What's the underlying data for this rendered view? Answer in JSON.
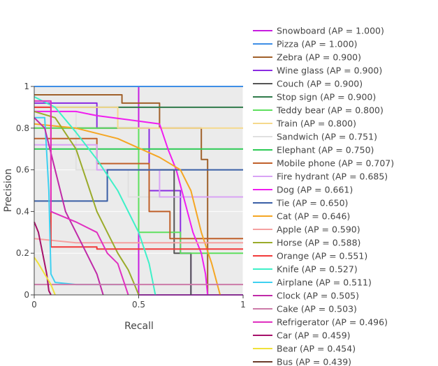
{
  "chart_data": {
    "type": "line",
    "title": "",
    "xlabel": "Recall",
    "ylabel": "Precision",
    "xlim": [
      0,
      1
    ],
    "ylim": [
      0,
      1
    ],
    "x_ticks": [
      {
        "value": 0,
        "label": "0"
      },
      {
        "value": 0.5,
        "label": "0.5"
      },
      {
        "value": 1,
        "label": "1"
      }
    ],
    "y_ticks": [
      {
        "value": 0,
        "label": "0"
      },
      {
        "value": 0.2,
        "label": "0.2"
      },
      {
        "value": 0.4,
        "label": "0.4"
      },
      {
        "value": 0.6,
        "label": "0.6"
      },
      {
        "value": 0.8,
        "label": "0.8"
      },
      {
        "value": 1,
        "label": "1"
      }
    ],
    "legend_position": "right",
    "series": [
      {
        "name": "Snowboard (AP = 1.000)",
        "color": "#c71ce0",
        "points": [
          [
            0,
            1
          ],
          [
            0.5,
            1
          ],
          [
            0.5,
            0
          ],
          [
            1,
            0
          ]
        ]
      },
      {
        "name": "Pizza (AP = 1.000)",
        "color": "#3e8ee6",
        "points": [
          [
            0,
            1
          ],
          [
            1,
            1
          ]
        ]
      },
      {
        "name": "Zebra (AP = 0.900)",
        "color": "#a0602a",
        "points": [
          [
            0,
            0.96
          ],
          [
            0.42,
            0.96
          ],
          [
            0.42,
            0.92
          ],
          [
            0.6,
            0.92
          ],
          [
            0.6,
            0.8
          ],
          [
            0.8,
            0.8
          ],
          [
            0.8,
            0.65
          ],
          [
            0.83,
            0.65
          ],
          [
            0.83,
            0
          ]
        ]
      },
      {
        "name": "Wine glass (AP = 0.900)",
        "color": "#8a2be2",
        "points": [
          [
            0,
            0.92
          ],
          [
            0.3,
            0.92
          ],
          [
            0.3,
            0.8
          ],
          [
            0.55,
            0.8
          ],
          [
            0.55,
            0.5
          ],
          [
            0.7,
            0.5
          ],
          [
            0.7,
            0.2
          ],
          [
            0.75,
            0.2
          ],
          [
            0.75,
            0
          ]
        ]
      },
      {
        "name": "Couch (AP = 0.900)",
        "color": "#555555",
        "points": [
          [
            0,
            0.8
          ],
          [
            0.5,
            0.8
          ],
          [
            0.5,
            0.6
          ],
          [
            0.67,
            0.6
          ],
          [
            0.67,
            0.2
          ],
          [
            0.75,
            0.2
          ],
          [
            0.75,
            0
          ]
        ]
      },
      {
        "name": "Stop sign (AP = 0.900)",
        "color": "#2f7a4a",
        "points": [
          [
            0,
            0.9
          ],
          [
            1,
            0.9
          ]
        ]
      },
      {
        "name": "Teddy bear (AP = 0.800)",
        "color": "#5ee05e",
        "points": [
          [
            0,
            0.8
          ],
          [
            0.5,
            0.8
          ],
          [
            0.5,
            0.3
          ],
          [
            0.7,
            0.3
          ],
          [
            0.7,
            0.2
          ],
          [
            1,
            0.2
          ]
        ]
      },
      {
        "name": "Train (AP = 0.800)",
        "color": "#f5d98c",
        "points": [
          [
            0,
            0.9
          ],
          [
            0.4,
            0.9
          ],
          [
            0.4,
            0.8
          ],
          [
            1,
            0.8
          ]
        ]
      },
      {
        "name": "Sandwich (AP = 0.751)",
        "color": "#e0e0e0",
        "points": [
          [
            0,
            0.88
          ],
          [
            0.2,
            0.88
          ],
          [
            0.2,
            0.6
          ],
          [
            0.45,
            0.6
          ],
          [
            0.45,
            0.47
          ],
          [
            1,
            0.47
          ]
        ]
      },
      {
        "name": "Elephant (AP = 0.750)",
        "color": "#2ccb55",
        "points": [
          [
            0,
            0.7
          ],
          [
            1,
            0.7
          ]
        ]
      },
      {
        "name": "Mobile phone (AP = 0.707)",
        "color": "#c0602a",
        "points": [
          [
            0,
            0.75
          ],
          [
            0.3,
            0.75
          ],
          [
            0.3,
            0.63
          ],
          [
            0.55,
            0.63
          ],
          [
            0.55,
            0.4
          ],
          [
            0.65,
            0.4
          ],
          [
            0.65,
            0.27
          ],
          [
            1,
            0.27
          ]
        ]
      },
      {
        "name": "Fire hydrant (AP = 0.685)",
        "color": "#d9a3f5",
        "points": [
          [
            0,
            0.72
          ],
          [
            0.3,
            0.72
          ],
          [
            0.3,
            0.6
          ],
          [
            0.6,
            0.6
          ],
          [
            0.6,
            0.47
          ],
          [
            1,
            0.47
          ]
        ]
      },
      {
        "name": "Dog (AP = 0.661)",
        "color": "#f01df0",
        "points": [
          [
            0,
            0.88
          ],
          [
            0.2,
            0.88
          ],
          [
            0.3,
            0.86
          ],
          [
            0.45,
            0.84
          ],
          [
            0.6,
            0.82
          ],
          [
            0.62,
            0.76
          ],
          [
            0.64,
            0.7
          ],
          [
            0.68,
            0.6
          ],
          [
            0.72,
            0.45
          ],
          [
            0.76,
            0.3
          ],
          [
            0.8,
            0.2
          ],
          [
            0.82,
            0.1
          ],
          [
            0.83,
            0
          ]
        ]
      },
      {
        "name": "Tie (AP = 0.650)",
        "color": "#3a5fa6",
        "points": [
          [
            0,
            0.45
          ],
          [
            0.35,
            0.45
          ],
          [
            0.35,
            0.6
          ],
          [
            1,
            0.6
          ]
        ]
      },
      {
        "name": "Cat (AP = 0.646)",
        "color": "#f5a623",
        "points": [
          [
            0,
            0.82
          ],
          [
            0.2,
            0.8
          ],
          [
            0.4,
            0.75
          ],
          [
            0.6,
            0.66
          ],
          [
            0.7,
            0.6
          ],
          [
            0.75,
            0.5
          ],
          [
            0.8,
            0.3
          ],
          [
            0.85,
            0.15
          ],
          [
            0.89,
            0
          ]
        ]
      },
      {
        "name": "Apple (AP = 0.590)",
        "color": "#f5a0a0",
        "points": [
          [
            0,
            0.27
          ],
          [
            0.1,
            0.26
          ],
          [
            0.2,
            0.25
          ],
          [
            1,
            0.25
          ]
        ]
      },
      {
        "name": "Horse (AP = 0.588)",
        "color": "#9aab2a",
        "points": [
          [
            0,
            0.88
          ],
          [
            0.1,
            0.85
          ],
          [
            0.2,
            0.7
          ],
          [
            0.25,
            0.55
          ],
          [
            0.3,
            0.4
          ],
          [
            0.35,
            0.3
          ],
          [
            0.4,
            0.2
          ],
          [
            0.45,
            0.12
          ],
          [
            0.48,
            0.05
          ],
          [
            0.5,
            0
          ]
        ]
      },
      {
        "name": "Orange (AP = 0.551)",
        "color": "#f23a3a",
        "points": [
          [
            0,
            0.9
          ],
          [
            0.08,
            0.9
          ],
          [
            0.08,
            0.23
          ],
          [
            0.3,
            0.23
          ],
          [
            0.3,
            0.22
          ],
          [
            1,
            0.22
          ]
        ]
      },
      {
        "name": "Knife (AP = 0.527)",
        "color": "#3ef0c8",
        "points": [
          [
            0,
            0.95
          ],
          [
            0.1,
            0.9
          ],
          [
            0.2,
            0.78
          ],
          [
            0.3,
            0.65
          ],
          [
            0.4,
            0.5
          ],
          [
            0.5,
            0.3
          ],
          [
            0.55,
            0.15
          ],
          [
            0.58,
            0
          ]
        ]
      },
      {
        "name": "Airplane (AP = 0.511)",
        "color": "#3ed0f0",
        "points": [
          [
            0,
            0.85
          ],
          [
            0.05,
            0.85
          ],
          [
            0.07,
            0.5
          ],
          [
            0.08,
            0.1
          ],
          [
            0.1,
            0.06
          ],
          [
            0.2,
            0.05
          ],
          [
            0.25,
            0.05
          ],
          [
            0.3,
            0.05
          ],
          [
            0.5,
            0.05
          ]
        ]
      },
      {
        "name": "Clock (AP = 0.505)",
        "color": "#c02aa8",
        "points": [
          [
            0,
            0.85
          ],
          [
            0.05,
            0.8
          ],
          [
            0.1,
            0.6
          ],
          [
            0.15,
            0.4
          ],
          [
            0.2,
            0.3
          ],
          [
            0.25,
            0.2
          ],
          [
            0.3,
            0.1
          ],
          [
            0.33,
            0
          ]
        ]
      },
      {
        "name": "Cake (AP = 0.503)",
        "color": "#cc7aa8",
        "points": [
          [
            0,
            0.05
          ],
          [
            1,
            0.05
          ]
        ]
      },
      {
        "name": "Refrigerator (AP = 0.496)",
        "color": "#e030c0",
        "points": [
          [
            0,
            0.93
          ],
          [
            0.08,
            0.93
          ],
          [
            0.08,
            0.4
          ],
          [
            0.2,
            0.35
          ],
          [
            0.3,
            0.3
          ],
          [
            0.35,
            0.2
          ],
          [
            0.4,
            0.15
          ],
          [
            0.45,
            0
          ]
        ]
      },
      {
        "name": "Car (AP = 0.459)",
        "color": "#a6106a",
        "points": [
          [
            0,
            0.35
          ],
          [
            0.02,
            0.3
          ],
          [
            0.04,
            0.2
          ],
          [
            0.06,
            0.1
          ],
          [
            0.07,
            0.02
          ],
          [
            0.08,
            0
          ]
        ]
      },
      {
        "name": "Bear (AP = 0.454)",
        "color": "#f0e23a",
        "points": [
          [
            0,
            0.18
          ],
          [
            0.02,
            0.15
          ],
          [
            0.05,
            0.1
          ],
          [
            0.08,
            0.05
          ],
          [
            0.1,
            0
          ]
        ]
      }
    ]
  },
  "legend": {
    "partial_last_label": "Bus (AP = 0.439)",
    "partial_last_color": "#6b3a2a"
  }
}
